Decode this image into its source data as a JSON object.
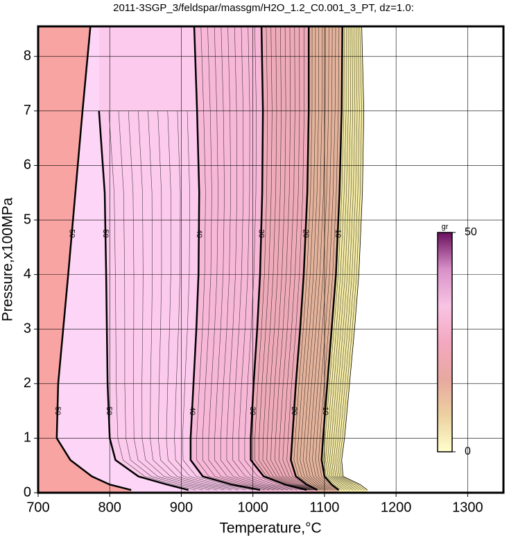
{
  "chart_data": {
    "type": "contour",
    "title": "2011-3SGP_3/feldspar/massgm/H2O_1.2_C0.001_3_PT, dz=1.0:",
    "xlabel": "Temperature,°C",
    "ylabel": "Pressure,x100MPa",
    "xlim": [
      700,
      1350
    ],
    "xticks": [
      700,
      800,
      900,
      1000,
      1100,
      1200,
      1300
    ],
    "ylim": [
      0,
      8.55
    ],
    "yticks": [
      0,
      1,
      2,
      3,
      4,
      5,
      6,
      7,
      8
    ],
    "grid": true,
    "background": "#f7a4a2",
    "y": [
      8.55,
      7,
      5.5,
      4,
      3,
      2,
      1,
      0.6,
      0.3,
      0.15,
      0.05
    ],
    "contours": [
      {
        "level": 50,
        "labeled": true,
        "fill": "#fdd6f7",
        "x": [
          773,
          762,
          752,
          742,
          735,
          728,
          726,
          745,
          775,
          800,
          830
        ]
      },
      {
        "level": 50,
        "labeled": true,
        "fill": "#fccaed",
        "x": [
          null,
          785,
          793,
          795,
          796,
          797,
          800,
          808,
          840,
          880,
          910
        ]
      },
      {
        "level": 40,
        "labeled": true,
        "fill": "#f7b8d8",
        "x": [
          918,
          922,
          925,
          924,
          921,
          917,
          913,
          913,
          930,
          970,
          1010
        ]
      },
      {
        "level": 30,
        "labeled": true,
        "fill": "#eeaab8",
        "x": [
          1012,
          1014,
          1013,
          1010,
          1006,
          1001,
          997,
          997,
          1015,
          1045,
          1075
        ]
      },
      {
        "level": 20,
        "labeled": true,
        "fill": "#e4b39c",
        "x": [
          1078,
          1078,
          1076,
          1071,
          1066,
          1060,
          1055,
          1053,
          1060,
          1075,
          1090
        ]
      },
      {
        "level": 10,
        "labeled": true,
        "fill": "#f3eaa6",
        "x": [
          1125,
          1124,
          1121,
          1116,
          1110,
          1104,
          1098,
          1096,
          1100,
          1110,
          1120
        ]
      },
      {
        "level": 0,
        "labeled": false,
        "fill": "#ffffff",
        "x": [
          1152,
          1155,
          1153,
          1148,
          1142,
          1135,
          1128,
          1124,
          1126,
          1150,
          1160
        ]
      }
    ],
    "colorbar": {
      "label": "gr",
      "clim": [
        0,
        50
      ],
      "cticks": [
        0,
        50
      ],
      "colormap": [
        "#ffffcc",
        "#ecd0a0",
        "#e8a8a0",
        "#f4a8c0",
        "#f8c4e4",
        "#d890c8",
        "#6a1060"
      ]
    }
  }
}
